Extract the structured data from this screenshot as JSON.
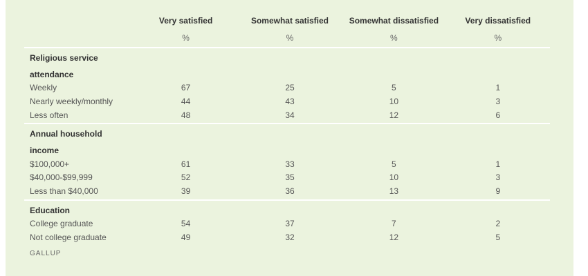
{
  "columns": [
    "Very satisfied",
    "Somewhat satisfied",
    "Somewhat dissatisfied",
    "Very dissatisfied"
  ],
  "unit": "%",
  "groups": [
    {
      "label_line1": "Religious service",
      "label_line2": "attendance",
      "rows": [
        {
          "label": "Weekly",
          "values": [
            "67",
            "25",
            "5",
            "1"
          ]
        },
        {
          "label": "Nearly weekly/monthly",
          "values": [
            "44",
            "43",
            "10",
            "3"
          ]
        },
        {
          "label": "Less often",
          "values": [
            "48",
            "34",
            "12",
            "6"
          ]
        }
      ]
    },
    {
      "label_line1": "Annual household",
      "label_line2": "income",
      "rows": [
        {
          "label": "$100,000+",
          "values": [
            "61",
            "33",
            "5",
            "1"
          ]
        },
        {
          "label": "$40,000-$99,999",
          "values": [
            "52",
            "35",
            "10",
            "3"
          ]
        },
        {
          "label": "Less than $40,000",
          "values": [
            "39",
            "36",
            "13",
            "9"
          ]
        }
      ]
    },
    {
      "label_line1": "Education",
      "rows": [
        {
          "label": "College graduate",
          "values": [
            "54",
            "37",
            "7",
            "2"
          ]
        },
        {
          "label": "Not college graduate",
          "values": [
            "49",
            "32",
            "12",
            "5"
          ]
        }
      ]
    }
  ],
  "source": "GALLUP",
  "colors": {
    "panel": "#ebf3de"
  }
}
